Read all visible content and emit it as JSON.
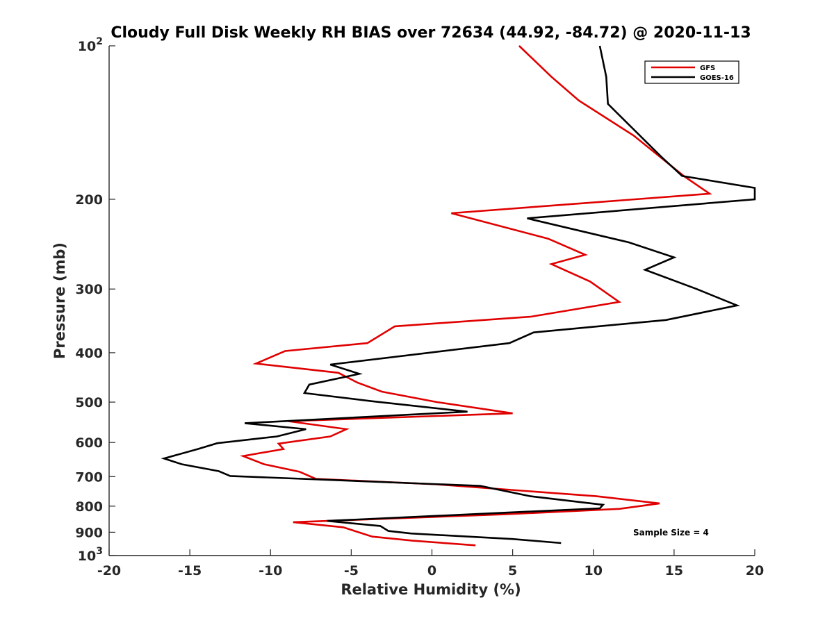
{
  "chart_data": {
    "type": "line",
    "title": "Cloudy Full Disk Weekly RH BIAS over 72634 (44.92, -84.72) @ 2020-11-13",
    "xlabel": "Relative Humidity (%)",
    "ylabel": "Pressure (mb)",
    "xlim": [
      -20,
      20
    ],
    "ylim": [
      100,
      1000
    ],
    "y_scale": "log",
    "y_reversed": true,
    "x_ticks": [
      "-20",
      "-15",
      "-10",
      "-5",
      "0",
      "5",
      "10",
      "15",
      "20"
    ],
    "y_ticks": [
      {
        "value": 100,
        "base": "10",
        "exp": "2"
      },
      {
        "value": 200,
        "label": "200"
      },
      {
        "value": 300,
        "label": "300"
      },
      {
        "value": 400,
        "label": "400"
      },
      {
        "value": 500,
        "label": "500"
      },
      {
        "value": 600,
        "label": "600"
      },
      {
        "value": 700,
        "label": "700"
      },
      {
        "value": 800,
        "label": "800"
      },
      {
        "value": 900,
        "label": "900"
      },
      {
        "value": 1000,
        "base": "10",
        "exp": "3"
      }
    ],
    "grid": false,
    "legend_position": "top-right",
    "series": [
      {
        "name": "GFS",
        "color": "#e00000",
        "points": [
          [
            5.4,
            100
          ],
          [
            7.4,
            115
          ],
          [
            9.1,
            128
          ],
          [
            12.5,
            150
          ],
          [
            15.6,
            180
          ],
          [
            17.2,
            195
          ],
          [
            1.2,
            213
          ],
          [
            7.2,
            239
          ],
          [
            9.5,
            257
          ],
          [
            7.4,
            268
          ],
          [
            9.8,
            290
          ],
          [
            11.6,
            318
          ],
          [
            6.1,
            340
          ],
          [
            -2.3,
            355
          ],
          [
            -4.0,
            383
          ],
          [
            -9.1,
            397
          ],
          [
            -10.9,
            420
          ],
          [
            -5.8,
            438
          ],
          [
            -4.6,
            458
          ],
          [
            -3.1,
            477
          ],
          [
            0.3,
            500
          ],
          [
            5.0,
            526
          ],
          [
            -8.9,
            545
          ],
          [
            -5.3,
            565
          ],
          [
            -6.3,
            584
          ],
          [
            -9.5,
            603
          ],
          [
            -9.2,
            618
          ],
          [
            -11.7,
            638
          ],
          [
            -10.4,
            662
          ],
          [
            -8.2,
            685
          ],
          [
            -7.2,
            707
          ],
          [
            0.3,
            725
          ],
          [
            10.2,
            765
          ],
          [
            14.1,
            790
          ],
          [
            11.6,
            810
          ],
          [
            4.5,
            830
          ],
          [
            -8.6,
            860
          ],
          [
            -5.5,
            880
          ],
          [
            -3.7,
            918
          ],
          [
            -1.2,
            935
          ],
          [
            2.7,
            955
          ]
        ]
      },
      {
        "name": "GOES-16",
        "color": "#000000",
        "points": [
          [
            10.4,
            100
          ],
          [
            10.8,
            115
          ],
          [
            10.9,
            130
          ],
          [
            14.2,
            165
          ],
          [
            15.5,
            180
          ],
          [
            20.0,
            190
          ],
          [
            20.0,
            200
          ],
          [
            5.9,
            218
          ],
          [
            12.2,
            243
          ],
          [
            15.0,
            260
          ],
          [
            13.2,
            275
          ],
          [
            16.4,
            300
          ],
          [
            18.9,
            323
          ],
          [
            14.5,
            345
          ],
          [
            6.3,
            365
          ],
          [
            4.8,
            383
          ],
          [
            -6.3,
            422
          ],
          [
            -4.5,
            440
          ],
          [
            -7.6,
            462
          ],
          [
            -7.9,
            480
          ],
          [
            -3.7,
            498
          ],
          [
            2.2,
            522
          ],
          [
            -11.6,
            550
          ],
          [
            -7.8,
            565
          ],
          [
            -9.6,
            584
          ],
          [
            -13.3,
            602
          ],
          [
            -14.5,
            618
          ],
          [
            -16.6,
            645
          ],
          [
            -15.5,
            662
          ],
          [
            -13.2,
            683
          ],
          [
            -12.5,
            698
          ],
          [
            3.0,
            730
          ],
          [
            6.1,
            765
          ],
          [
            10.6,
            795
          ],
          [
            10.4,
            808
          ],
          [
            -6.5,
            855
          ],
          [
            -3.2,
            875
          ],
          [
            -2.7,
            895
          ],
          [
            -1.3,
            905
          ],
          [
            5.0,
            928
          ],
          [
            8.0,
            945
          ]
        ]
      }
    ],
    "annotations": [
      "Sample Size = 4"
    ]
  }
}
